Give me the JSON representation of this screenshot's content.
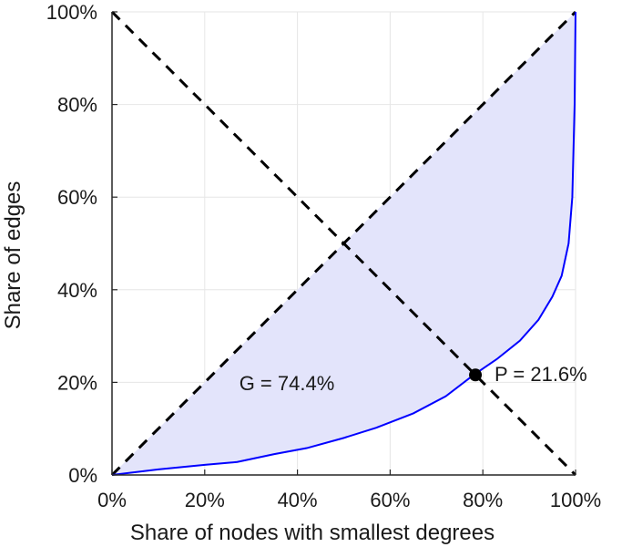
{
  "chart_data": {
    "type": "area",
    "xlabel": "Share of nodes with smallest degrees",
    "ylabel": "Share of edges",
    "xlim": [
      0,
      100
    ],
    "ylim": [
      0,
      100
    ],
    "x_ticks": [
      "0%",
      "20%",
      "40%",
      "60%",
      "80%",
      "100%"
    ],
    "y_ticks": [
      "0%",
      "20%",
      "40%",
      "60%",
      "80%",
      "100%"
    ],
    "grid": true,
    "lorenz_curve": {
      "x": [
        0,
        10,
        20,
        27,
        35,
        42,
        50,
        57,
        65,
        72,
        78,
        83,
        88,
        92,
        95,
        97,
        98.5,
        99.3,
        99.8,
        100
      ],
      "y": [
        0,
        1.2,
        2.2,
        2.8,
        4.5,
        5.8,
        8,
        10.2,
        13.3,
        17,
        21.6,
        25,
        29,
        33.5,
        38.5,
        43,
        50,
        60,
        80,
        100
      ],
      "color": "#0000ff",
      "fill_color": "#e3e4fb"
    },
    "reference_lines": [
      {
        "from": [
          0,
          0
        ],
        "to": [
          100,
          100
        ],
        "style": "dashed",
        "color": "#000000"
      },
      {
        "from": [
          0,
          100
        ],
        "to": [
          100,
          0
        ],
        "style": "dashed",
        "color": "#000000"
      }
    ],
    "point": {
      "x": 78.4,
      "y": 21.6
    },
    "annotations": {
      "gini_label": "G = 74.4%",
      "point_label": "P = 21.6%"
    }
  }
}
